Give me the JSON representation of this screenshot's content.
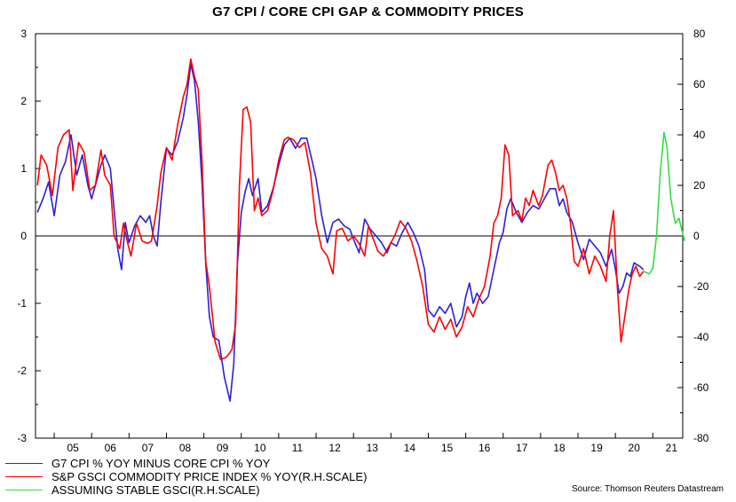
{
  "chart_data": {
    "type": "line",
    "title": "G7 CPI / CORE CPI GAP & COMMODITY PRICES",
    "source": "Source: Thomson Reuters Datastream",
    "left_axis": {
      "ticks": [
        "3",
        "2",
        "1",
        "0",
        "-1",
        "-2",
        "-3"
      ],
      "ylim": [
        -3,
        3
      ]
    },
    "right_axis": {
      "ticks": [
        "80",
        "60",
        "40",
        "20",
        "0",
        "-20",
        "-40",
        "-60",
        "-80"
      ],
      "ylim": [
        -80,
        80
      ]
    },
    "x_axis": {
      "labels": [
        "05",
        "06",
        "07",
        "08",
        "09",
        "10",
        "11",
        "12",
        "13",
        "14",
        "15",
        "16",
        "17",
        "18",
        "19",
        "20",
        "21"
      ],
      "xlim": [
        2004.5,
        2021.8
      ]
    },
    "zero_line": true,
    "series": [
      {
        "name": "G7 CPI % YOY MINUS CORE CPI % YOY",
        "color": "#2b1fdc",
        "axis": "left",
        "points": [
          [
            2004.55,
            0.35
          ],
          [
            2004.7,
            0.55
          ],
          [
            2004.85,
            0.8
          ],
          [
            2005.0,
            0.3
          ],
          [
            2005.15,
            0.9
          ],
          [
            2005.3,
            1.1
          ],
          [
            2005.45,
            1.5
          ],
          [
            2005.6,
            0.9
          ],
          [
            2005.75,
            1.2
          ],
          [
            2005.9,
            0.75
          ],
          [
            2006.0,
            0.55
          ],
          [
            2006.1,
            0.75
          ],
          [
            2006.25,
            1.05
          ],
          [
            2006.35,
            1.2
          ],
          [
            2006.5,
            1.0
          ],
          [
            2006.6,
            0.4
          ],
          [
            2006.7,
            -0.2
          ],
          [
            2006.8,
            -0.5
          ],
          [
            2006.9,
            0.2
          ],
          [
            2007.0,
            -0.1
          ],
          [
            2007.15,
            0.15
          ],
          [
            2007.3,
            0.3
          ],
          [
            2007.45,
            0.2
          ],
          [
            2007.55,
            0.3
          ],
          [
            2007.65,
            0.0
          ],
          [
            2007.75,
            -0.15
          ],
          [
            2007.85,
            0.5
          ],
          [
            2008.0,
            1.3
          ],
          [
            2008.15,
            1.2
          ],
          [
            2008.3,
            1.4
          ],
          [
            2008.45,
            1.75
          ],
          [
            2008.55,
            2.1
          ],
          [
            2008.65,
            2.55
          ],
          [
            2008.75,
            2.3
          ],
          [
            2008.85,
            1.7
          ],
          [
            2008.95,
            0.8
          ],
          [
            2009.05,
            -0.4
          ],
          [
            2009.15,
            -1.2
          ],
          [
            2009.25,
            -1.5
          ],
          [
            2009.4,
            -1.55
          ],
          [
            2009.55,
            -2.1
          ],
          [
            2009.7,
            -2.45
          ],
          [
            2009.8,
            -1.9
          ],
          [
            2009.9,
            -0.4
          ],
          [
            2010.0,
            0.35
          ],
          [
            2010.1,
            0.65
          ],
          [
            2010.2,
            0.85
          ],
          [
            2010.3,
            0.6
          ],
          [
            2010.45,
            0.85
          ],
          [
            2010.55,
            0.35
          ],
          [
            2010.7,
            0.45
          ],
          [
            2010.85,
            0.7
          ],
          [
            2011.0,
            1.05
          ],
          [
            2011.15,
            1.35
          ],
          [
            2011.3,
            1.45
          ],
          [
            2011.45,
            1.3
          ],
          [
            2011.6,
            1.45
          ],
          [
            2011.75,
            1.45
          ],
          [
            2011.9,
            1.1
          ],
          [
            2012.0,
            0.85
          ],
          [
            2012.15,
            0.3
          ],
          [
            2012.3,
            -0.1
          ],
          [
            2012.45,
            0.2
          ],
          [
            2012.6,
            0.25
          ],
          [
            2012.75,
            0.15
          ],
          [
            2012.9,
            0.1
          ],
          [
            2013.0,
            -0.05
          ],
          [
            2013.15,
            -0.25
          ],
          [
            2013.3,
            0.25
          ],
          [
            2013.45,
            0.1
          ],
          [
            2013.6,
            0.0
          ],
          [
            2013.75,
            -0.1
          ],
          [
            2013.9,
            -0.25
          ],
          [
            2014.0,
            -0.1
          ],
          [
            2014.15,
            -0.15
          ],
          [
            2014.3,
            0.05
          ],
          [
            2014.45,
            0.2
          ],
          [
            2014.6,
            0.05
          ],
          [
            2014.75,
            -0.15
          ],
          [
            2014.9,
            -0.5
          ],
          [
            2015.0,
            -1.1
          ],
          [
            2015.15,
            -1.2
          ],
          [
            2015.3,
            -1.05
          ],
          [
            2015.45,
            -1.15
          ],
          [
            2015.6,
            -1.0
          ],
          [
            2015.75,
            -1.35
          ],
          [
            2015.9,
            -1.2
          ],
          [
            2016.0,
            -0.9
          ],
          [
            2016.1,
            -0.7
          ],
          [
            2016.2,
            -1.0
          ],
          [
            2016.3,
            -0.85
          ],
          [
            2016.45,
            -1.0
          ],
          [
            2016.6,
            -0.9
          ],
          [
            2016.75,
            -0.5
          ],
          [
            2016.9,
            -0.1
          ],
          [
            2017.0,
            0.05
          ],
          [
            2017.1,
            0.4
          ],
          [
            2017.2,
            0.55
          ],
          [
            2017.35,
            0.35
          ],
          [
            2017.5,
            0.2
          ],
          [
            2017.65,
            0.35
          ],
          [
            2017.8,
            0.45
          ],
          [
            2017.95,
            0.4
          ],
          [
            2018.1,
            0.55
          ],
          [
            2018.25,
            0.7
          ],
          [
            2018.4,
            0.7
          ],
          [
            2018.5,
            0.45
          ],
          [
            2018.6,
            0.55
          ],
          [
            2018.7,
            0.35
          ],
          [
            2018.85,
            0.2
          ],
          [
            2019.0,
            -0.1
          ],
          [
            2019.15,
            -0.35
          ],
          [
            2019.3,
            -0.05
          ],
          [
            2019.45,
            -0.15
          ],
          [
            2019.6,
            -0.25
          ],
          [
            2019.75,
            -0.45
          ],
          [
            2019.9,
            -0.2
          ],
          [
            2020.0,
            -0.5
          ],
          [
            2020.1,
            -0.85
          ],
          [
            2020.2,
            -0.75
          ],
          [
            2020.3,
            -0.55
          ],
          [
            2020.4,
            -0.6
          ],
          [
            2020.5,
            -0.4
          ],
          [
            2020.65,
            -0.45
          ],
          [
            2020.75,
            -0.5
          ]
        ]
      },
      {
        "name": "S&P GSCI COMMODITY PRICE INDEX % YOY(R.H.SCALE)",
        "color": "#ff0000",
        "axis": "right",
        "points": [
          [
            2004.55,
            20
          ],
          [
            2004.65,
            32
          ],
          [
            2004.8,
            28
          ],
          [
            2004.95,
            16
          ],
          [
            2005.1,
            35
          ],
          [
            2005.25,
            40
          ],
          [
            2005.4,
            42
          ],
          [
            2005.5,
            18
          ],
          [
            2005.65,
            37
          ],
          [
            2005.8,
            33
          ],
          [
            2005.95,
            18
          ],
          [
            2006.1,
            20
          ],
          [
            2006.25,
            34
          ],
          [
            2006.35,
            24
          ],
          [
            2006.5,
            20
          ],
          [
            2006.6,
            0
          ],
          [
            2006.75,
            -5
          ],
          [
            2006.85,
            5
          ],
          [
            2006.95,
            -2
          ],
          [
            2007.05,
            -8
          ],
          [
            2007.2,
            5
          ],
          [
            2007.35,
            -2
          ],
          [
            2007.5,
            -3
          ],
          [
            2007.6,
            -2
          ],
          [
            2007.75,
            12
          ],
          [
            2007.85,
            25
          ],
          [
            2008.0,
            35
          ],
          [
            2008.15,
            30
          ],
          [
            2008.3,
            44
          ],
          [
            2008.45,
            55
          ],
          [
            2008.55,
            60
          ],
          [
            2008.65,
            70
          ],
          [
            2008.75,
            63
          ],
          [
            2008.85,
            58
          ],
          [
            2008.95,
            30
          ],
          [
            2009.05,
            -10
          ],
          [
            2009.15,
            -20
          ],
          [
            2009.3,
            -42
          ],
          [
            2009.45,
            -49
          ],
          [
            2009.6,
            -48
          ],
          [
            2009.75,
            -45
          ],
          [
            2009.85,
            -35
          ],
          [
            2009.95,
            20
          ],
          [
            2010.05,
            50
          ],
          [
            2010.15,
            51
          ],
          [
            2010.25,
            45
          ],
          [
            2010.35,
            10
          ],
          [
            2010.45,
            15
          ],
          [
            2010.55,
            8
          ],
          [
            2010.7,
            10
          ],
          [
            2010.85,
            18
          ],
          [
            2011.0,
            30
          ],
          [
            2011.15,
            38
          ],
          [
            2011.25,
            39
          ],
          [
            2011.4,
            38
          ],
          [
            2011.55,
            35
          ],
          [
            2011.7,
            37
          ],
          [
            2011.85,
            25
          ],
          [
            2012.0,
            5
          ],
          [
            2012.15,
            -5
          ],
          [
            2012.3,
            -8
          ],
          [
            2012.45,
            -15
          ],
          [
            2012.55,
            2
          ],
          [
            2012.7,
            3
          ],
          [
            2012.85,
            -2
          ],
          [
            2013.0,
            0
          ],
          [
            2013.15,
            -3
          ],
          [
            2013.3,
            -8
          ],
          [
            2013.4,
            4
          ],
          [
            2013.5,
            0
          ],
          [
            2013.65,
            -6
          ],
          [
            2013.8,
            -8
          ],
          [
            2013.95,
            -4
          ],
          [
            2014.1,
            0
          ],
          [
            2014.25,
            6
          ],
          [
            2014.4,
            3
          ],
          [
            2014.55,
            -2
          ],
          [
            2014.7,
            -10
          ],
          [
            2014.85,
            -20
          ],
          [
            2015.0,
            -35
          ],
          [
            2015.15,
            -38
          ],
          [
            2015.3,
            -32
          ],
          [
            2015.45,
            -37
          ],
          [
            2015.6,
            -33
          ],
          [
            2015.75,
            -40
          ],
          [
            2015.9,
            -36
          ],
          [
            2016.05,
            -28
          ],
          [
            2016.2,
            -32
          ],
          [
            2016.35,
            -25
          ],
          [
            2016.5,
            -20
          ],
          [
            2016.65,
            -8
          ],
          [
            2016.75,
            5
          ],
          [
            2016.85,
            8
          ],
          [
            2016.95,
            15
          ],
          [
            2017.05,
            36
          ],
          [
            2017.15,
            32
          ],
          [
            2017.25,
            8
          ],
          [
            2017.4,
            10
          ],
          [
            2017.5,
            6
          ],
          [
            2017.6,
            15
          ],
          [
            2017.7,
            12
          ],
          [
            2017.8,
            18
          ],
          [
            2017.95,
            12
          ],
          [
            2018.05,
            16
          ],
          [
            2018.2,
            28
          ],
          [
            2018.3,
            30
          ],
          [
            2018.4,
            25
          ],
          [
            2018.5,
            18
          ],
          [
            2018.6,
            20
          ],
          [
            2018.7,
            15
          ],
          [
            2018.8,
            5
          ],
          [
            2018.9,
            -10
          ],
          [
            2019.0,
            -12
          ],
          [
            2019.15,
            -5
          ],
          [
            2019.3,
            -15
          ],
          [
            2019.45,
            -8
          ],
          [
            2019.6,
            -12
          ],
          [
            2019.75,
            -18
          ],
          [
            2019.85,
            0
          ],
          [
            2019.95,
            10
          ],
          [
            2020.05,
            -20
          ],
          [
            2020.15,
            -42
          ],
          [
            2020.25,
            -32
          ],
          [
            2020.35,
            -22
          ],
          [
            2020.45,
            -15
          ],
          [
            2020.55,
            -12
          ],
          [
            2020.65,
            -16
          ],
          [
            2020.75,
            -14
          ]
        ]
      },
      {
        "name": "ASSUMING STABLE GSCI(R.H.SCALE)",
        "color": "#33dd44",
        "axis": "right",
        "points": [
          [
            2020.75,
            -14
          ],
          [
            2020.9,
            -15
          ],
          [
            2021.0,
            -13
          ],
          [
            2021.1,
            0
          ],
          [
            2021.2,
            25
          ],
          [
            2021.3,
            41
          ],
          [
            2021.38,
            35
          ],
          [
            2021.48,
            15
          ],
          [
            2021.6,
            5
          ],
          [
            2021.7,
            7
          ],
          [
            2021.78,
            2
          ],
          [
            2021.85,
            -2
          ]
        ]
      }
    ],
    "legend": [
      "G7 CPI % YOY MINUS CORE CPI % YOY",
      "S&P GSCI COMMODITY PRICE INDEX % YOY(R.H.SCALE)",
      "ASSUMING STABLE GSCI(R.H.SCALE)"
    ]
  }
}
